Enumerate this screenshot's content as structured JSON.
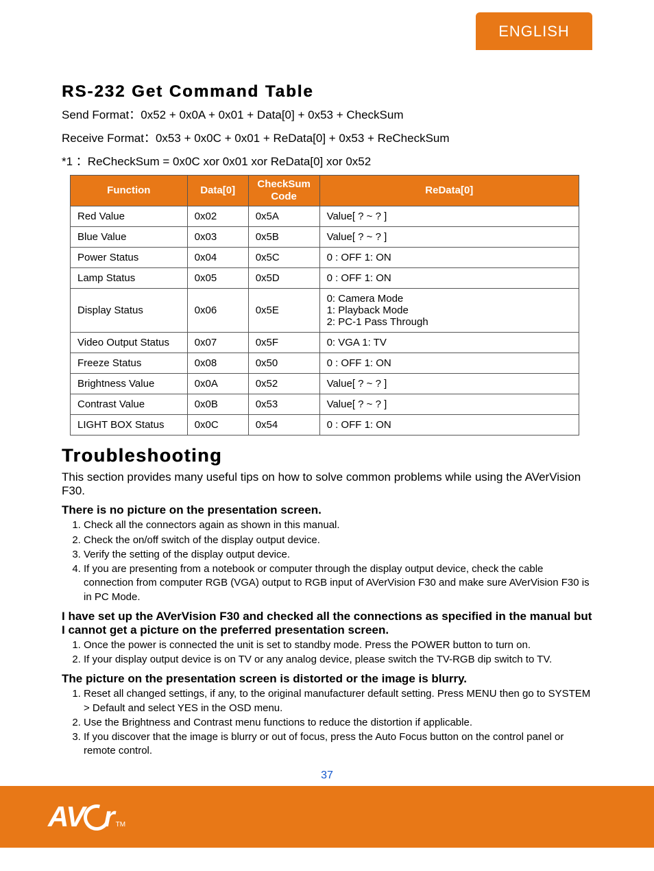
{
  "lang_tab": "ENGLISH",
  "section1": {
    "title": "RS-232 Get Command Table",
    "send_format": "Send Format：0x52 + 0x0A + 0x01 + Data[0] + 0x53 + CheckSum",
    "receive_format": "Receive Format：0x53 + 0x0C + 0x01 +  ReData[0] + 0x53 + ReCheckSum",
    "note": "*1 ：ReCheckSum = 0x0C xor 0x01 xor ReData[0]  xor 0x52"
  },
  "table": {
    "headers": {
      "function": "Function",
      "data0": "Data[0]",
      "checksum": "CheckSum Code",
      "redata0": "ReData[0]"
    },
    "rows": [
      {
        "fn": "Red Value",
        "d0": "0x02",
        "cs": "0x5A",
        "rd": "Value[ ? ~ ? ]"
      },
      {
        "fn": "Blue Value",
        "d0": "0x03",
        "cs": "0x5B",
        "rd": "Value[ ? ~ ? ]"
      },
      {
        "fn": "Power Status",
        "d0": "0x04",
        "cs": "0x5C",
        "rd": "0 : OFF    1: ON"
      },
      {
        "fn": "Lamp Status",
        "d0": "0x05",
        "cs": "0x5D",
        "rd": "0 : OFF    1: ON"
      },
      {
        "fn": "Display Status",
        "d0": "0x06",
        "cs": "0x5E",
        "rd": "0: Camera  Mode\n1: Playback Mode\n2: PC-1 Pass Through"
      },
      {
        "fn": "Video Output Status",
        "d0": "0x07",
        "cs": "0x5F",
        "rd": "0: VGA  1: TV"
      },
      {
        "fn": "Freeze Status",
        "d0": "0x08",
        "cs": "0x50",
        "rd": "0 : OFF    1: ON"
      },
      {
        "fn": "Brightness Value",
        "d0": "0x0A",
        "cs": "0x52",
        "rd": "Value[ ? ~ ? ]"
      },
      {
        "fn": "Contrast Value",
        "d0": "0x0B",
        "cs": "0x53",
        "rd": "Value[ ? ~ ? ]"
      },
      {
        "fn": "LIGHT BOX Status",
        "d0": "0x0C",
        "cs": "0x54",
        "rd": "0 : OFF    1: ON"
      }
    ]
  },
  "troubleshooting": {
    "title": "Troubleshooting",
    "intro": "This section provides many useful tips on how to solve common problems while using the AVerVision F30.",
    "blocks": [
      {
        "heading": "There is no picture on the presentation screen.",
        "items": [
          "Check all the connectors again as shown in this manual.",
          "Check the on/off switch of the display output device.",
          "Verify the setting of the display output device.",
          "If you are presenting from a notebook or computer through the display output device, check the cable connection from computer RGB (VGA) output to RGB input of AVerVision F30 and make sure AVerVision F30 is in PC Mode."
        ]
      },
      {
        "heading": "I have set up the AVerVision F30 and checked all the connections as specified in the manual but I cannot get a picture on the preferred presentation screen.",
        "items": [
          "Once the power is connected the unit is set to standby mode. Press the POWER button to turn on.",
          "If your display output device is on TV or any analog device, please switch the TV-RGB dip switch to TV."
        ]
      },
      {
        "heading": "The picture on the presentation screen is distorted or the image is blurry.",
        "items": [
          "Reset all changed settings, if any, to the original manufacturer default setting. Press MENU then go to SYSTEM > Default and select YES in the OSD menu.",
          "Use the Brightness and Contrast menu functions to reduce the distortion if applicable.",
          "If you discover that the image is blurry or out of focus, press the Auto Focus button on the control panel or remote control."
        ]
      }
    ]
  },
  "page_number": "37",
  "logo": {
    "pre": "AV",
    "post": "r",
    "tm": "TM"
  },
  "colors": {
    "brand": "#e87817",
    "text": "#000000",
    "link": "#1155cc",
    "border": "#555555",
    "white": "#ffffff"
  }
}
